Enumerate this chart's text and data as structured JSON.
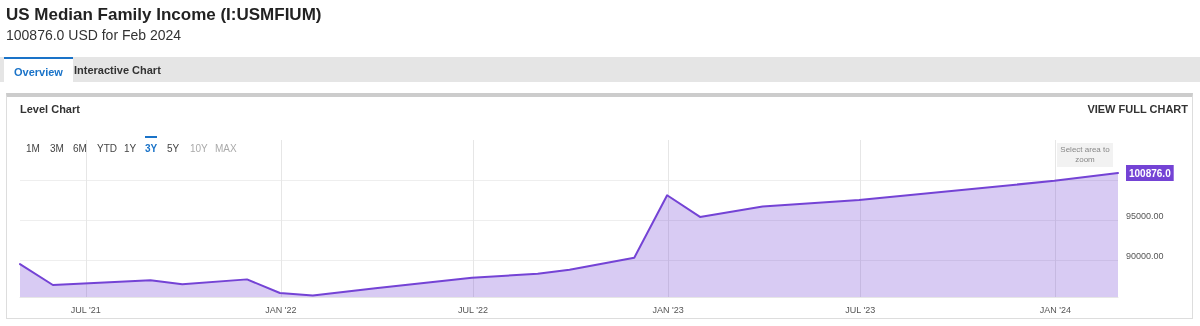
{
  "chart_data": {
    "type": "area",
    "title": "US Median Family Income (I:USMFIUM)",
    "subtitle": "100876.0 USD for Feb 2024",
    "x": [
      "2021-04-30",
      "2021-05-31",
      "2021-08-31",
      "2021-09-30",
      "2021-11-30",
      "2021-12-31",
      "2022-01-31",
      "2022-03-31",
      "2022-06-30",
      "2022-08-31",
      "2022-09-30",
      "2022-11-30",
      "2022-12-31",
      "2023-01-31",
      "2023-03-31",
      "2023-06-30",
      "2023-12-31",
      "2024-02-29"
    ],
    "series": [
      {
        "color": "#7443d5",
        "values": [
          89500,
          86900,
          87500,
          87000,
          87600,
          85900,
          85600,
          86500,
          87800,
          88300,
          88800,
          90300,
          98100,
          95400,
          96700,
          97500,
          99900,
          100876
        ]
      }
    ],
    "xlim": [
      "2021-04-30",
      "2024-02-29"
    ],
    "xticks": [
      {
        "value": "2021-07-01",
        "label": "JUL '21"
      },
      {
        "value": "2022-01-01",
        "label": "JAN '22"
      },
      {
        "value": "2022-07-01",
        "label": "JUL '22"
      },
      {
        "value": "2023-01-01",
        "label": "JAN '23"
      },
      {
        "value": "2023-07-01",
        "label": "JUL '23"
      },
      {
        "value": "2024-01-01",
        "label": "JAN '24"
      }
    ],
    "ylim": [
      85400,
      105000
    ],
    "yticks": [
      {
        "value": 90000,
        "label": "90000.00"
      },
      {
        "value": 95000,
        "label": "95000.00"
      },
      {
        "value": 100000,
        "label": null
      }
    ],
    "grid": true,
    "marker": "none",
    "line_style": "solid",
    "annotations": [
      "Overview",
      "Interactive Chart",
      "Level Chart",
      "VIEW FULL CHART",
      "1M",
      "3M",
      "6M",
      "YTD",
      "1Y",
      "3Y",
      "5Y",
      "10Y",
      "MAX",
      "Select area to zoom",
      {
        "text": "100876.0",
        "x": "2024-02-29",
        "y": 100876
      }
    ]
  }
}
